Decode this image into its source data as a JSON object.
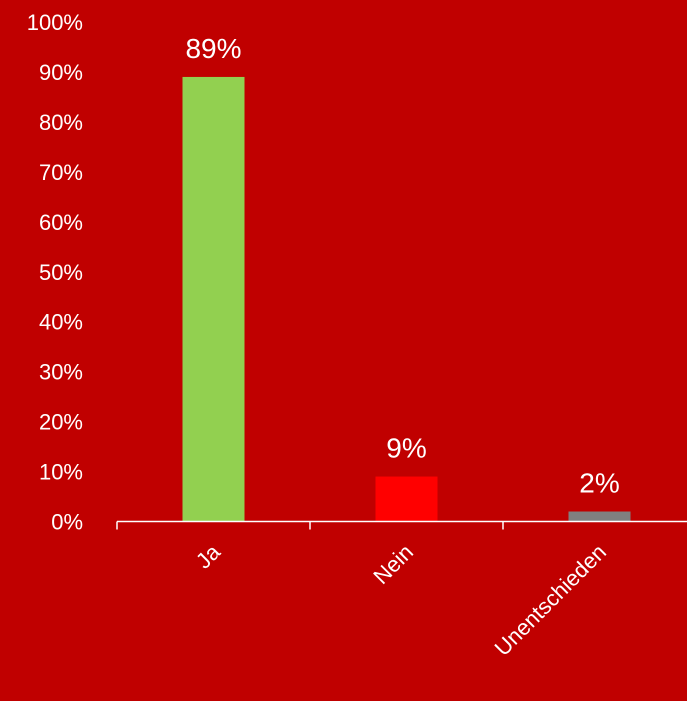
{
  "chart_data": {
    "type": "bar",
    "title": "",
    "xlabel": "",
    "ylabel": "",
    "categories": [
      "Ja",
      "Nein",
      "Unentschieden"
    ],
    "values": [
      89,
      9,
      2
    ],
    "data_labels": [
      "89%",
      "9%",
      "2%"
    ],
    "bar_colors": [
      "#92d050",
      "#ff0000",
      "#808080"
    ],
    "ylim": [
      0,
      100
    ],
    "y_ticks": [
      0,
      10,
      20,
      30,
      40,
      50,
      60,
      70,
      80,
      90,
      100
    ],
    "y_tick_labels": [
      "0%",
      "10%",
      "20%",
      "30%",
      "40%",
      "50%",
      "60%",
      "70%",
      "80%",
      "90%",
      "100%"
    ],
    "grid": false,
    "legend": "none",
    "background_color": "#c00000",
    "axis_color": "#ffffff",
    "text_color": "#ffffff"
  }
}
